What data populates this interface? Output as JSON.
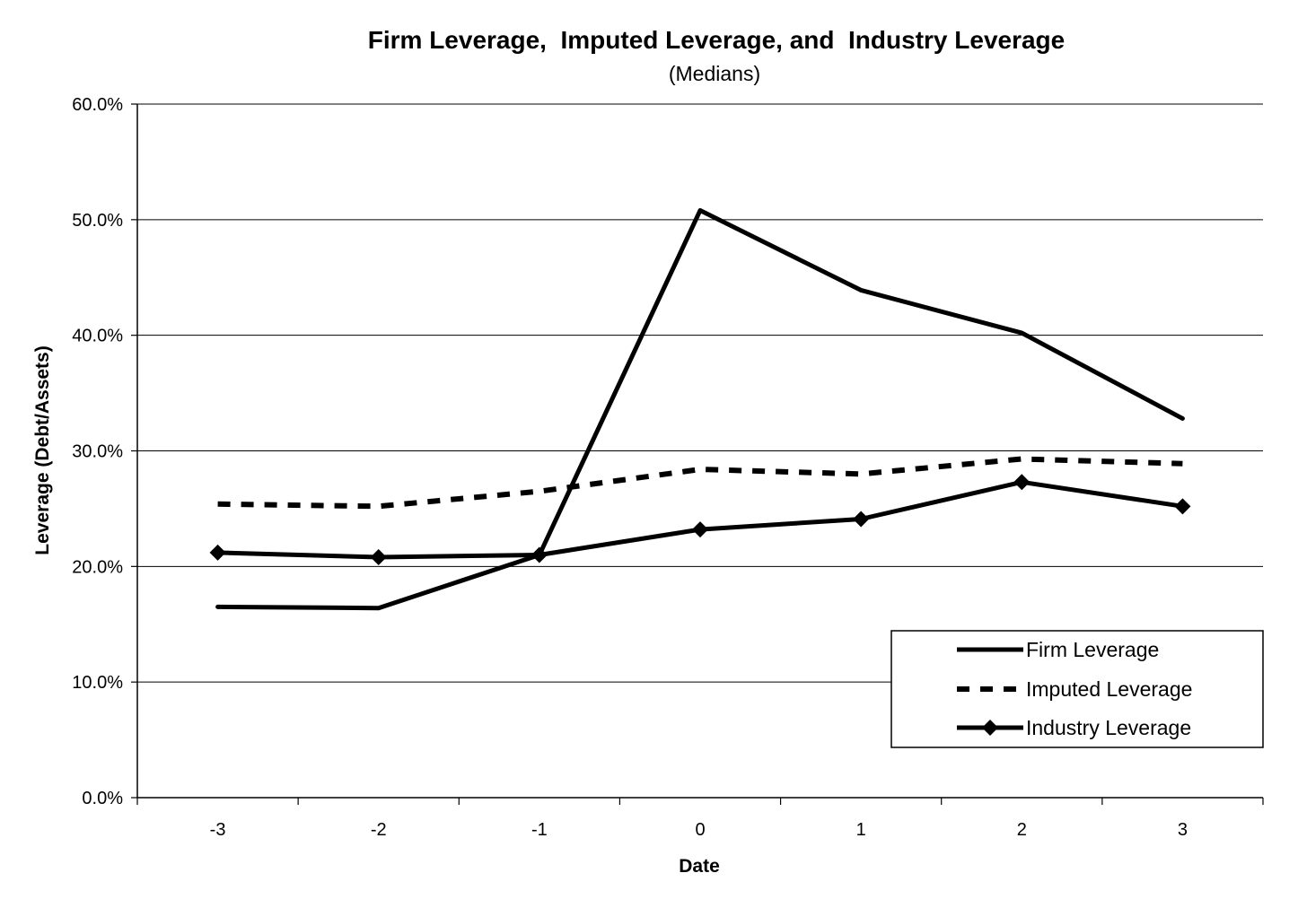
{
  "chart_data": {
    "type": "line",
    "title": "Firm Leverage,  Imputed Leverage, and  Industry Leverage",
    "subtitle": "(Medians)",
    "xlabel": "Date",
    "ylabel": "Leverage (Debt/Assets)",
    "categories": [
      "-3",
      "-2",
      "-1",
      "0",
      "1",
      "2",
      "3"
    ],
    "ylim": [
      0,
      0.6
    ],
    "yticks": [
      "0.0%",
      "10.0%",
      "20.0%",
      "30.0%",
      "40.0%",
      "50.0%",
      "60.0%"
    ],
    "grid": true,
    "legend_position": "bottom-right",
    "series": [
      {
        "name": "Firm Leverage",
        "style": "solid",
        "marker": "none",
        "color": "#000000",
        "values": [
          0.165,
          0.164,
          0.21,
          0.508,
          0.439,
          0.402,
          0.328
        ]
      },
      {
        "name": "Imputed Leverage",
        "style": "dashed",
        "marker": "none",
        "color": "#000000",
        "values": [
          0.254,
          0.252,
          0.265,
          0.284,
          0.28,
          0.293,
          0.289
        ]
      },
      {
        "name": "Industry Leverage",
        "style": "solid",
        "marker": "diamond",
        "color": "#000000",
        "values": [
          0.212,
          0.208,
          0.21,
          0.232,
          0.241,
          0.273,
          0.252
        ]
      }
    ]
  }
}
